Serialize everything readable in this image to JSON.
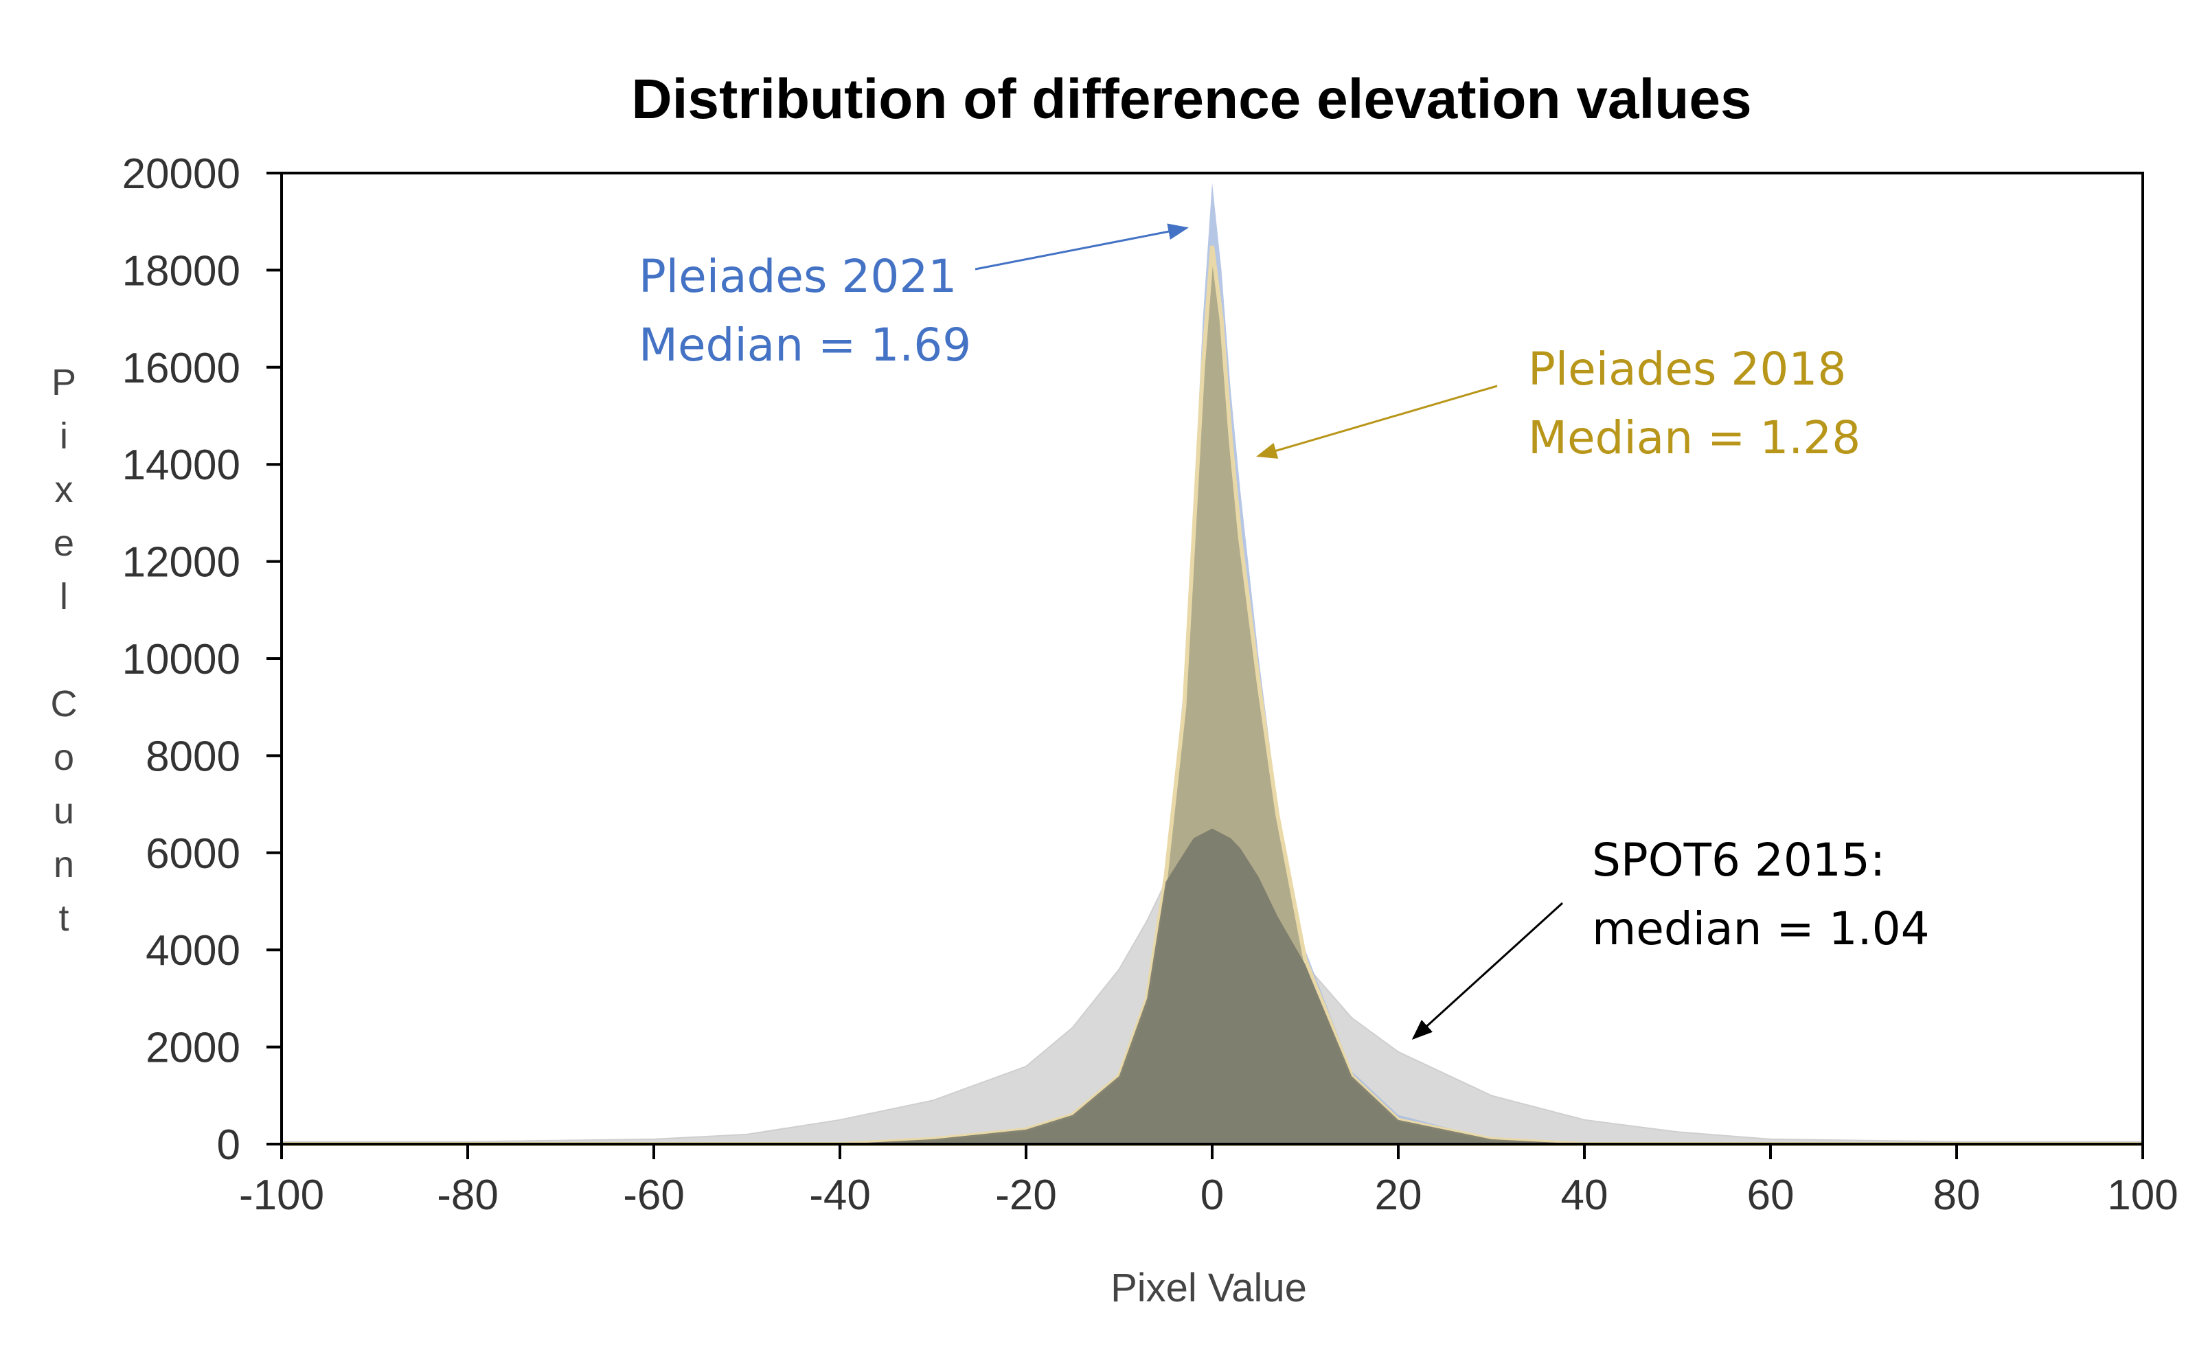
{
  "colors": {
    "pleiades_2021": "#4472c4",
    "pleiades_2018": "#b8961a",
    "spot6_2015": "#000000",
    "fill_2021": "#a9bce0",
    "fill_2018": "#b0aa86",
    "fill_2018_edge": "#e9d9a8",
    "fill_spot6": "#d9d9d9",
    "overlap_dark": "#7a7a6c"
  },
  "chart_data": {
    "type": "area",
    "title": "Distribution of difference elevation values",
    "xlabel": "Pixel Value",
    "ylabel": "Pixel Count",
    "xlim": [
      -100,
      100
    ],
    "ylim": [
      0,
      20000
    ],
    "x_ticks": [
      "-100",
      "-80",
      "-60",
      "-40",
      "-20",
      "0",
      "20",
      "40",
      "60",
      "80",
      "100"
    ],
    "y_ticks": [
      "0",
      "2000",
      "4000",
      "6000",
      "8000",
      "10000",
      "12000",
      "14000",
      "16000",
      "18000",
      "20000"
    ],
    "grid": false,
    "x": [
      -100,
      -80,
      -60,
      -50,
      -40,
      -30,
      -20,
      -15,
      -10,
      -7,
      -5,
      -3,
      -2,
      -1,
      0,
      1,
      2,
      3,
      5,
      7,
      10,
      15,
      20,
      30,
      40,
      50,
      60,
      80,
      100
    ],
    "series": [
      {
        "name": "Pleiades 2021",
        "values": [
          0,
          0,
          0,
          0,
          0,
          100,
          300,
          600,
          1400,
          3000,
          5500,
          9500,
          13000,
          17000,
          19800,
          18000,
          15500,
          13500,
          10000,
          7000,
          4000,
          1500,
          600,
          100,
          0,
          0,
          0,
          0,
          0
        ]
      },
      {
        "name": "Pleiades 2018",
        "values": [
          0,
          0,
          0,
          0,
          0,
          100,
          300,
          600,
          1400,
          3000,
          5500,
          9000,
          12500,
          16000,
          18500,
          17000,
          14500,
          12500,
          9500,
          6800,
          3800,
          1400,
          500,
          100,
          0,
          0,
          0,
          0,
          0
        ]
      },
      {
        "name": "SPOT6 2015",
        "values": [
          50,
          50,
          100,
          200,
          500,
          900,
          1600,
          2400,
          3600,
          4600,
          5400,
          6000,
          6300,
          6400,
          6500,
          6400,
          6300,
          6100,
          5500,
          4700,
          3700,
          2600,
          1900,
          1000,
          500,
          250,
          100,
          50,
          50
        ]
      }
    ],
    "annotations": [
      {
        "series": "Pleiades 2021",
        "line1": "Pleiades 2021",
        "line2": "Median = 1.69"
      },
      {
        "series": "Pleiades 2018",
        "line1": "Pleiades 2018",
        "line2": "Median = 1.28"
      },
      {
        "series": "SPOT6 2015",
        "line1": "SPOT6 2015:",
        "line2": "median = 1.04"
      }
    ]
  }
}
